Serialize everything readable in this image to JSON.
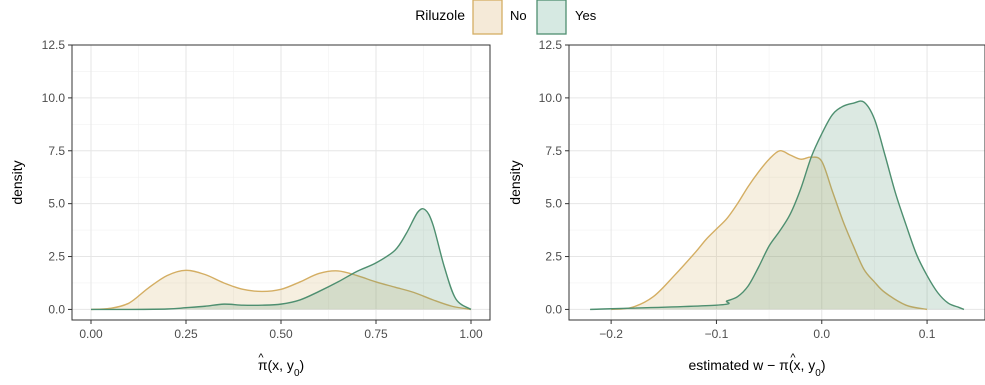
{
  "legend": {
    "title": "Riluzole",
    "entries": [
      {
        "label": "No",
        "fill": "#f5ead8",
        "stroke": "#d4ae63"
      },
      {
        "label": "Yes",
        "fill": "#d6e9e2",
        "stroke": "#4e8f70"
      }
    ]
  },
  "colors": {
    "no_fill": "#d4ae63",
    "no_line": "#d4ae63",
    "yes_fill": "#4e8f70",
    "yes_line": "#4e8f70",
    "grid_major": "#e6e6e6",
    "grid_minor": "#f2f2f2",
    "axis_text": "#4d4d4d"
  },
  "chart_data": [
    {
      "type": "area",
      "ylabel": "density",
      "xlabel": "π̂(x, y0)",
      "xlim": [
        -0.05,
        1.05
      ],
      "ylim": [
        -0.5,
        12.5
      ],
      "xticks": [
        0,
        0.25,
        0.5,
        0.75,
        1.0
      ],
      "xtick_labels": [
        "0.00",
        "0.25",
        "0.50",
        "0.75",
        "1.00"
      ],
      "yticks": [
        0,
        2.5,
        5.0,
        7.5,
        10.0,
        12.5
      ],
      "ytick_labels": [
        "0.0",
        "2.5",
        "5.0",
        "7.5",
        "10.0",
        "12.5"
      ],
      "grid": true,
      "series": [
        {
          "name": "No",
          "x": [
            0.0,
            0.05,
            0.1,
            0.15,
            0.2,
            0.25,
            0.3,
            0.35,
            0.4,
            0.45,
            0.5,
            0.55,
            0.6,
            0.65,
            0.7,
            0.75,
            0.8,
            0.85,
            0.9,
            0.95,
            1.0
          ],
          "y": [
            0.0,
            0.05,
            0.3,
            1.0,
            1.6,
            1.85,
            1.65,
            1.25,
            0.95,
            0.85,
            0.95,
            1.3,
            1.7,
            1.82,
            1.6,
            1.3,
            1.05,
            0.8,
            0.45,
            0.15,
            0.0
          ]
        },
        {
          "name": "Yes",
          "x": [
            0.0,
            0.1,
            0.2,
            0.25,
            0.3,
            0.35,
            0.4,
            0.45,
            0.5,
            0.55,
            0.6,
            0.65,
            0.7,
            0.75,
            0.8,
            0.83,
            0.86,
            0.88,
            0.9,
            0.93,
            0.96,
            1.0
          ],
          "y": [
            0.0,
            0.0,
            0.02,
            0.08,
            0.15,
            0.25,
            0.2,
            0.2,
            0.25,
            0.45,
            0.85,
            1.3,
            1.8,
            2.2,
            2.8,
            3.6,
            4.6,
            4.7,
            4.0,
            2.0,
            0.5,
            0.0
          ]
        }
      ]
    },
    {
      "type": "area",
      "ylabel": "density",
      "xlabel": "estimated w − π̂(x, y0)",
      "xlim": [
        -0.24,
        0.155
      ],
      "ylim": [
        -0.5,
        12.5
      ],
      "xticks": [
        -0.2,
        -0.1,
        0.0,
        0.1
      ],
      "xtick_labels": [
        "−0.2",
        "−0.1",
        "0.0",
        "0.1"
      ],
      "yticks": [
        0,
        2.5,
        5.0,
        7.5,
        10.0,
        12.5
      ],
      "ytick_labels": [
        "0.0",
        "2.5",
        "5.0",
        "7.5",
        "10.0",
        "12.5"
      ],
      "grid": true,
      "series": [
        {
          "name": "No",
          "x": [
            -0.2,
            -0.18,
            -0.16,
            -0.14,
            -0.12,
            -0.11,
            -0.1,
            -0.09,
            -0.08,
            -0.07,
            -0.06,
            -0.05,
            -0.04,
            -0.03,
            -0.02,
            -0.01,
            0.0,
            0.01,
            0.02,
            0.03,
            0.04,
            0.05,
            0.06,
            0.08,
            0.1
          ],
          "y": [
            0.0,
            0.1,
            0.6,
            1.6,
            2.7,
            3.3,
            3.8,
            4.3,
            5.0,
            5.8,
            6.5,
            7.1,
            7.5,
            7.3,
            7.1,
            7.2,
            7.0,
            5.6,
            4.2,
            3.0,
            1.9,
            1.3,
            0.8,
            0.2,
            0.0
          ]
        },
        {
          "name": "Yes",
          "x": [
            -0.22,
            -0.1,
            -0.09,
            -0.08,
            -0.07,
            -0.06,
            -0.05,
            -0.04,
            -0.03,
            -0.02,
            -0.01,
            0.0,
            0.01,
            0.02,
            0.03,
            0.04,
            0.05,
            0.06,
            0.07,
            0.08,
            0.09,
            0.1,
            0.11,
            0.12,
            0.13,
            0.135
          ],
          "y": [
            0.0,
            0.2,
            0.4,
            0.6,
            1.1,
            2.0,
            3.0,
            3.7,
            4.5,
            5.7,
            7.2,
            8.3,
            9.2,
            9.6,
            9.75,
            9.8,
            9.0,
            7.3,
            5.5,
            4.0,
            2.6,
            1.6,
            0.8,
            0.3,
            0.1,
            0.0
          ]
        }
      ]
    }
  ]
}
